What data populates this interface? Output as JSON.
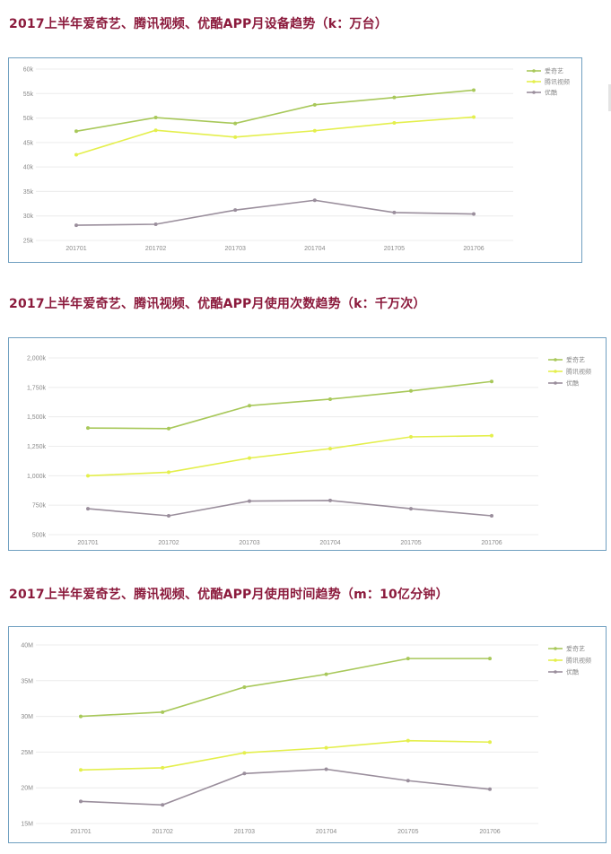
{
  "sections": [
    {
      "title": "2017上半年爱奇艺、腾讯视频、优酷APP月设备趋势（k：万台）"
    },
    {
      "title": "2017上半年爱奇艺、腾讯视频、优酷APP月使用次数趋势（k：千万次）"
    },
    {
      "title": "2017上半年爱奇艺、腾讯视频、优酷APP月使用时间趋势（m：10亿分钟）"
    }
  ],
  "colors": {
    "iqiyi": "#a8c85a",
    "tencent": "#e4ef4c",
    "youku": "#9a8e9c",
    "grid": "#ececec",
    "text": "#8a8a8a",
    "frame": "#6f9fc0"
  },
  "chart_data": [
    {
      "type": "line",
      "title": "2017上半年爱奇艺、腾讯视频、优酷APP月设备趋势（k：万台）",
      "categories": [
        "201701",
        "201702",
        "201703",
        "201704",
        "201705",
        "201706"
      ],
      "ylim": [
        25,
        60
      ],
      "yticks": [
        "25k",
        "30k",
        "35k",
        "40k",
        "45k",
        "50k",
        "55k",
        "60k"
      ],
      "legend": "top-right",
      "grid": true,
      "series": [
        {
          "name": "爱奇艺",
          "color": "#a8c85a",
          "values": [
            47.3,
            50.1,
            48.9,
            52.7,
            54.2,
            55.7
          ]
        },
        {
          "name": "腾讯视频",
          "color": "#e4ef4c",
          "values": [
            42.5,
            47.5,
            46.1,
            47.4,
            49.0,
            50.2
          ]
        },
        {
          "name": "优酷",
          "color": "#9a8e9c",
          "values": [
            28.1,
            28.3,
            31.2,
            33.2,
            30.7,
            30.4
          ]
        }
      ]
    },
    {
      "type": "line",
      "title": "2017上半年爱奇艺、腾讯视频、优酷APP月使用次数趋势（k：千万次）",
      "categories": [
        "201701",
        "201702",
        "201703",
        "201704",
        "201705",
        "201706"
      ],
      "ylim": [
        500,
        2000
      ],
      "yticks": [
        "500k",
        "750k",
        "1,000k",
        "1,250k",
        "1,500k",
        "1,750k",
        "2,000k"
      ],
      "legend": "top-right",
      "grid": true,
      "series": [
        {
          "name": "爱奇艺",
          "color": "#a8c85a",
          "values": [
            1405,
            1400,
            1595,
            1650,
            1720,
            1800
          ]
        },
        {
          "name": "腾讯视频",
          "color": "#e4ef4c",
          "values": [
            1000,
            1030,
            1150,
            1230,
            1330,
            1340
          ]
        },
        {
          "name": "优酷",
          "color": "#9a8e9c",
          "values": [
            720,
            660,
            785,
            790,
            720,
            660
          ]
        }
      ]
    },
    {
      "type": "line",
      "title": "2017上半年爱奇艺、腾讯视频、优酷APP月使用时间趋势（m：10亿分钟）",
      "categories": [
        "201701",
        "201702",
        "201703",
        "201704",
        "201705",
        "201706"
      ],
      "ylim": [
        15,
        40
      ],
      "yticks": [
        "15M",
        "20M",
        "25M",
        "30M",
        "35M",
        "40M"
      ],
      "legend": "top-right",
      "grid": true,
      "series": [
        {
          "name": "爱奇艺",
          "color": "#a8c85a",
          "values": [
            30.0,
            30.6,
            34.1,
            35.9,
            38.1,
            38.1
          ]
        },
        {
          "name": "腾讯视频",
          "color": "#e4ef4c",
          "values": [
            22.5,
            22.8,
            24.9,
            25.6,
            26.6,
            26.4
          ]
        },
        {
          "name": "优酷",
          "color": "#9a8e9c",
          "values": [
            18.1,
            17.6,
            22.0,
            22.6,
            21.0,
            19.8
          ]
        }
      ]
    }
  ]
}
